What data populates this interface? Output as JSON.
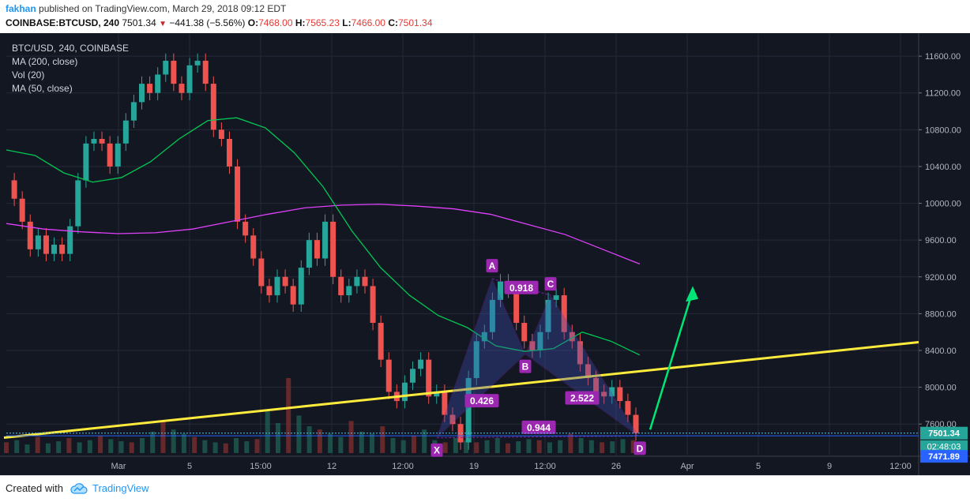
{
  "header": {
    "author": "fakhan",
    "published_text": "published on TradingView.com, March 29, 2018 09:12 EDT",
    "symbol": "COINBASE:BTCUSD, 240",
    "last": "7501.34",
    "change": "−441.38 (−5.56%)",
    "open_label": "O:",
    "open_value": "7468.00",
    "high_label": "H:",
    "high_value": "7565.23",
    "low_label": "L:",
    "low_value": "7466.00",
    "close_label": "C:",
    "close_value": "7501.34"
  },
  "legend": {
    "title": "BTC/USD, 240, COINBASE",
    "items": [
      "MA (200, close)",
      "Vol (20)",
      "MA (50, close)"
    ]
  },
  "footer": {
    "created_with": "Created with",
    "brand": "TradingView"
  },
  "colors": {
    "background": "#131722",
    "grid": "#252a38",
    "up": "#26a69a",
    "down": "#ef5350",
    "ma200": "#e040fb",
    "ma50": "#00c853",
    "trendline": "#ffeb3b",
    "pattern": "#7b1fa2",
    "arrow": "#00e676",
    "current_price": "#2962ff"
  },
  "chart_data": {
    "type": "line",
    "title": "BTC/USD, 240, COINBASE",
    "x_tick_labels": [
      "Mar",
      "5",
      "15:00",
      "12",
      "12:00",
      "19",
      "12:00",
      "26",
      "Apr",
      "5",
      "9",
      "12:00"
    ],
    "y_ticks": [
      7600,
      8000,
      8400,
      8800,
      9200,
      9600,
      10000,
      10400,
      10800,
      11200,
      11600
    ],
    "ylim": [
      7250,
      11850
    ],
    "price_series": {
      "name": "BTC/USD",
      "values": [
        10250,
        10050,
        9800,
        9500,
        9650,
        9450,
        9550,
        9450,
        9750,
        10250,
        10650,
        10700,
        10650,
        10400,
        10650,
        10900,
        11100,
        11300,
        11200,
        11400,
        11550,
        11300,
        11200,
        11500,
        11550,
        11300,
        10800,
        10700,
        10400,
        9800,
        9650,
        9400,
        9100,
        9000,
        9200,
        9100,
        8900,
        9300,
        9600,
        9400,
        9800,
        9200,
        9000,
        9100,
        9200,
        9100,
        8700,
        8300,
        7950,
        7850,
        8050,
        8200,
        8300,
        7900,
        7950,
        7700,
        7600,
        7400,
        8100,
        8500,
        8600,
        8950,
        9150,
        9050,
        8700,
        8500,
        8400,
        8600,
        8950,
        9000,
        8600,
        8500,
        8250,
        8100,
        7950,
        7900,
        8000,
        7850,
        7700,
        7501.34
      ]
    },
    "ma200_series": {
      "name": "MA (200, close)",
      "values": [
        9780,
        9720,
        9690,
        9670,
        9680,
        9720,
        9800,
        9880,
        9950,
        9980,
        9990,
        9970,
        9940,
        9880,
        9770,
        9660,
        9500,
        9340
      ]
    },
    "ma50_series": {
      "name": "MA (50, close)",
      "values": [
        10580,
        10520,
        10330,
        10230,
        10280,
        10450,
        10700,
        10900,
        10930,
        10820,
        10550,
        10180,
        9700,
        9300,
        9000,
        8780,
        8650,
        8450,
        8390,
        8420,
        8600,
        8500,
        8350
      ]
    },
    "volume": [
      10,
      12,
      8,
      15,
      9,
      11,
      14,
      10,
      12,
      16,
      13,
      11,
      10,
      14,
      20,
      30,
      22,
      18,
      15,
      12,
      10,
      9,
      14,
      11,
      13,
      40,
      28,
      70,
      35,
      25,
      22,
      18,
      15,
      30,
      20,
      18,
      25,
      14,
      12,
      16,
      22,
      12,
      10,
      14,
      12,
      10,
      12,
      14,
      9,
      11,
      13,
      12,
      10,
      12,
      18,
      14,
      12,
      10,
      11,
      13,
      12,
      10
    ],
    "current_price_label": "7501.34",
    "countdown_label": "02:48:03",
    "low_label": "7471.89",
    "harmonic_pattern": {
      "points": [
        {
          "label": "X",
          "x": "Mar 18",
          "y": 7450
        },
        {
          "label": "A",
          "x": "Mar 21",
          "y": 9180
        },
        {
          "label": "B",
          "x": "Mar 22",
          "y": 8360
        },
        {
          "label": "C",
          "x": "Mar 24",
          "y": 9000
        },
        {
          "label": "D",
          "x": "Mar 29",
          "y": 7470
        }
      ],
      "ratios": [
        "0.426",
        "0.918",
        "2.522",
        "0.944"
      ]
    }
  }
}
